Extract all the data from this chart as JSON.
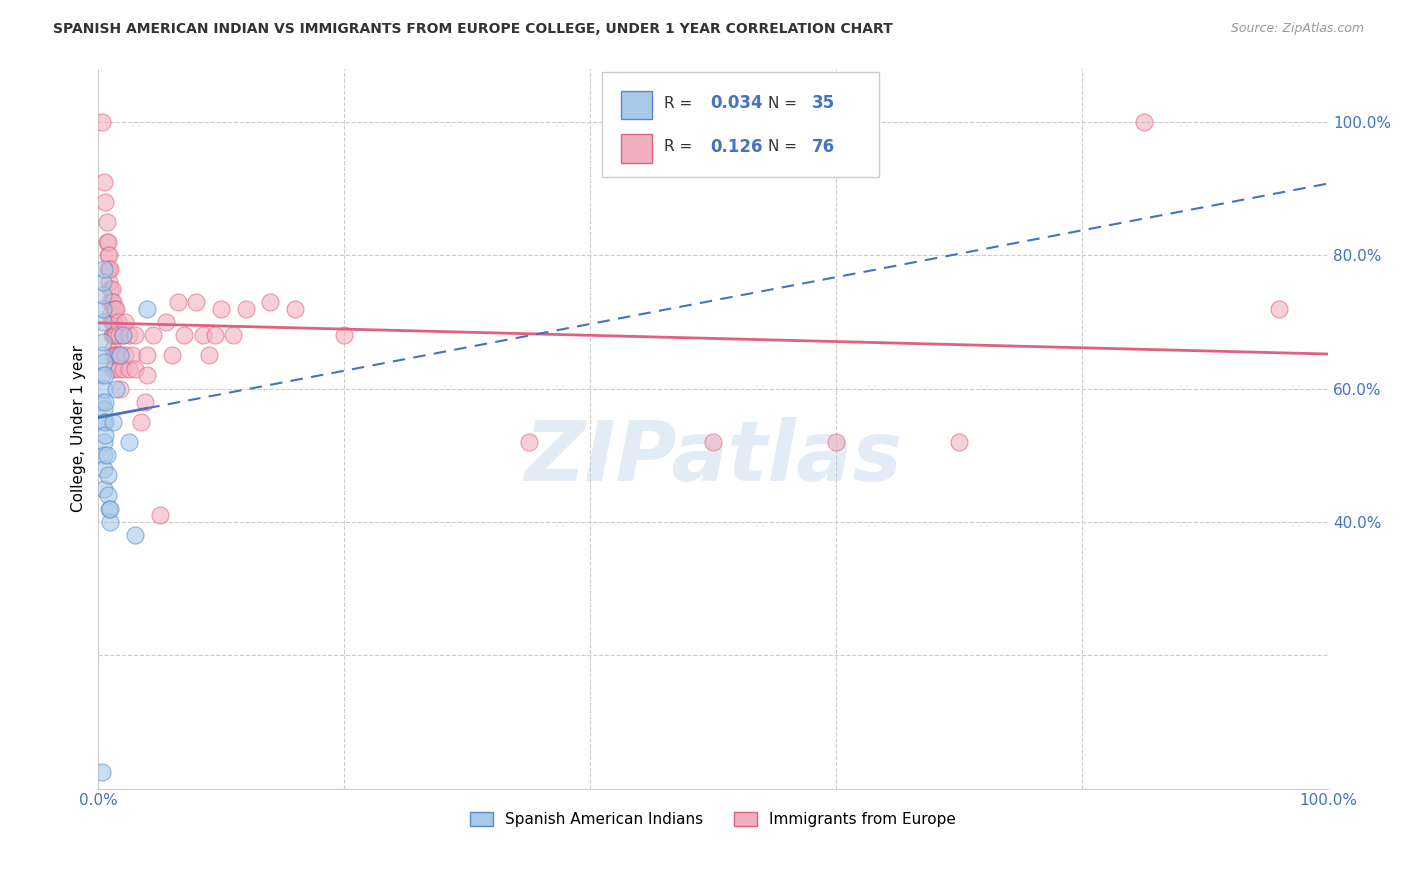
{
  "title": "SPANISH AMERICAN INDIAN VS IMMIGRANTS FROM EUROPE COLLEGE, UNDER 1 YEAR CORRELATION CHART",
  "source": "Source: ZipAtlas.com",
  "ylabel": "College, Under 1 year",
  "legend_label1": "Spanish American Indians",
  "legend_label2": "Immigrants from Europe",
  "R1": 0.034,
  "N1": 35,
  "R2": 0.126,
  "N2": 76,
  "color_blue": "#a8c8e8",
  "color_blue_edge": "#5588cc",
  "color_blue_line": "#4472c4",
  "color_pink": "#f0b0c0",
  "color_pink_edge": "#e06080",
  "color_pink_line": "#e06080",
  "color_text_blue": "#4472c4",
  "watermark": "ZIPatlas",
  "blue_points": [
    [
      0.003,
      0.025
    ],
    [
      0.003,
      0.58
    ],
    [
      0.003,
      0.62
    ],
    [
      0.003,
      0.65
    ],
    [
      0.004,
      0.67
    ],
    [
      0.004,
      0.7
    ],
    [
      0.004,
      0.72
    ],
    [
      0.004,
      0.74
    ],
    [
      0.004,
      0.76
    ],
    [
      0.005,
      0.78
    ],
    [
      0.005,
      0.64
    ],
    [
      0.005,
      0.6
    ],
    [
      0.005,
      0.57
    ],
    [
      0.005,
      0.55
    ],
    [
      0.005,
      0.52
    ],
    [
      0.005,
      0.5
    ],
    [
      0.005,
      0.48
    ],
    [
      0.005,
      0.45
    ],
    [
      0.006,
      0.62
    ],
    [
      0.006,
      0.58
    ],
    [
      0.006,
      0.55
    ],
    [
      0.006,
      0.53
    ],
    [
      0.007,
      0.5
    ],
    [
      0.008,
      0.47
    ],
    [
      0.008,
      0.44
    ],
    [
      0.009,
      0.42
    ],
    [
      0.01,
      0.4
    ],
    [
      0.01,
      0.42
    ],
    [
      0.012,
      0.55
    ],
    [
      0.015,
      0.6
    ],
    [
      0.018,
      0.65
    ],
    [
      0.02,
      0.68
    ],
    [
      0.025,
      0.52
    ],
    [
      0.03,
      0.38
    ],
    [
      0.04,
      0.72
    ]
  ],
  "pink_points": [
    [
      0.003,
      1.0
    ],
    [
      0.005,
      0.91
    ],
    [
      0.006,
      0.88
    ],
    [
      0.007,
      0.85
    ],
    [
      0.007,
      0.82
    ],
    [
      0.008,
      0.8
    ],
    [
      0.008,
      0.78
    ],
    [
      0.008,
      0.82
    ],
    [
      0.009,
      0.8
    ],
    [
      0.009,
      0.78
    ],
    [
      0.009,
      0.76
    ],
    [
      0.01,
      0.78
    ],
    [
      0.01,
      0.75
    ],
    [
      0.01,
      0.73
    ],
    [
      0.01,
      0.71
    ],
    [
      0.011,
      0.75
    ],
    [
      0.011,
      0.73
    ],
    [
      0.011,
      0.7
    ],
    [
      0.011,
      0.68
    ],
    [
      0.012,
      0.73
    ],
    [
      0.012,
      0.7
    ],
    [
      0.012,
      0.68
    ],
    [
      0.012,
      0.66
    ],
    [
      0.012,
      0.63
    ],
    [
      0.013,
      0.72
    ],
    [
      0.013,
      0.7
    ],
    [
      0.013,
      0.68
    ],
    [
      0.013,
      0.65
    ],
    [
      0.013,
      0.63
    ],
    [
      0.014,
      0.72
    ],
    [
      0.014,
      0.68
    ],
    [
      0.014,
      0.65
    ],
    [
      0.015,
      0.72
    ],
    [
      0.015,
      0.68
    ],
    [
      0.015,
      0.65
    ],
    [
      0.016,
      0.7
    ],
    [
      0.016,
      0.65
    ],
    [
      0.017,
      0.68
    ],
    [
      0.017,
      0.63
    ],
    [
      0.018,
      0.65
    ],
    [
      0.018,
      0.6
    ],
    [
      0.02,
      0.68
    ],
    [
      0.02,
      0.63
    ],
    [
      0.022,
      0.7
    ],
    [
      0.022,
      0.65
    ],
    [
      0.025,
      0.68
    ],
    [
      0.025,
      0.63
    ],
    [
      0.028,
      0.65
    ],
    [
      0.03,
      0.68
    ],
    [
      0.03,
      0.63
    ],
    [
      0.035,
      0.55
    ],
    [
      0.038,
      0.58
    ],
    [
      0.04,
      0.62
    ],
    [
      0.04,
      0.65
    ],
    [
      0.045,
      0.68
    ],
    [
      0.05,
      0.41
    ],
    [
      0.055,
      0.7
    ],
    [
      0.06,
      0.65
    ],
    [
      0.065,
      0.73
    ],
    [
      0.07,
      0.68
    ],
    [
      0.08,
      0.73
    ],
    [
      0.085,
      0.68
    ],
    [
      0.09,
      0.65
    ],
    [
      0.095,
      0.68
    ],
    [
      0.1,
      0.72
    ],
    [
      0.11,
      0.68
    ],
    [
      0.12,
      0.72
    ],
    [
      0.14,
      0.73
    ],
    [
      0.16,
      0.72
    ],
    [
      0.2,
      0.68
    ],
    [
      0.35,
      0.52
    ],
    [
      0.5,
      0.52
    ],
    [
      0.6,
      0.52
    ],
    [
      0.7,
      0.52
    ],
    [
      0.85,
      1.0
    ],
    [
      0.96,
      0.72
    ]
  ]
}
